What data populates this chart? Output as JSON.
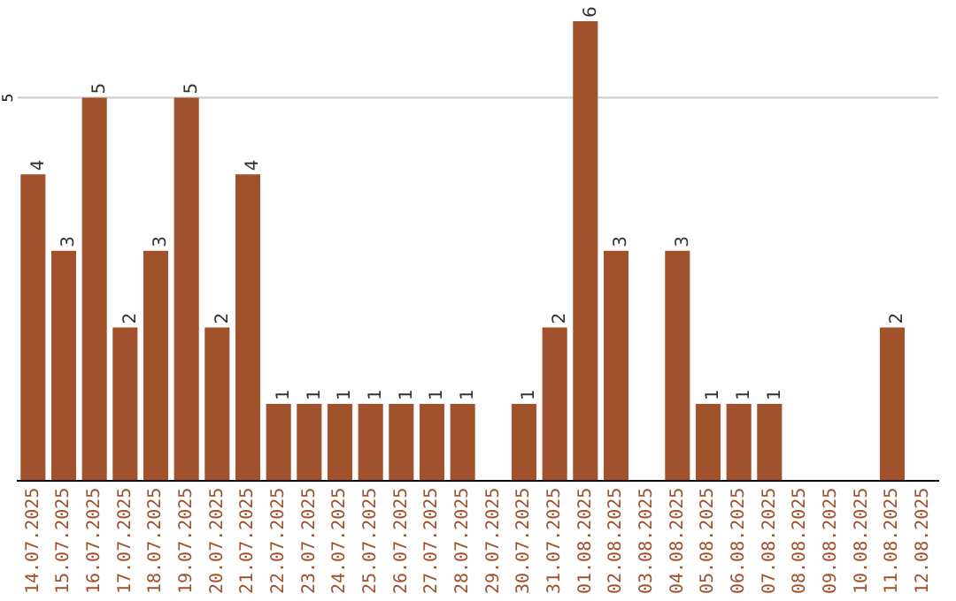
{
  "chart_data": {
    "type": "bar",
    "categories": [
      "14.07.2025",
      "15.07.2025",
      "16.07.2025",
      "17.07.2025",
      "18.07.2025",
      "19.07.2025",
      "20.07.2025",
      "21.07.2025",
      "22.07.2025",
      "23.07.2025",
      "24.07.2025",
      "25.07.2025",
      "26.07.2025",
      "27.07.2025",
      "28.07.2025",
      "29.07.2025",
      "30.07.2025",
      "31.07.2025",
      "01.08.2025",
      "02.08.2025",
      "03.08.2025",
      "04.08.2025",
      "05.08.2025",
      "06.08.2025",
      "07.08.2025",
      "08.08.2025",
      "09.08.2025",
      "10.08.2025",
      "11.08.2025",
      "12.08.2025"
    ],
    "values": [
      4,
      3,
      5,
      2,
      3,
      5,
      2,
      4,
      1,
      1,
      1,
      1,
      1,
      1,
      1,
      null,
      1,
      2,
      6,
      3,
      null,
      3,
      1,
      1,
      1,
      null,
      null,
      null,
      2,
      null
    ],
    "color": "#a0522d",
    "ref_lines": [
      {
        "axis": "y",
        "value": 5,
        "label": "5",
        "color": "#cccccc"
      }
    ],
    "data_labels": true,
    "legend": false
  }
}
